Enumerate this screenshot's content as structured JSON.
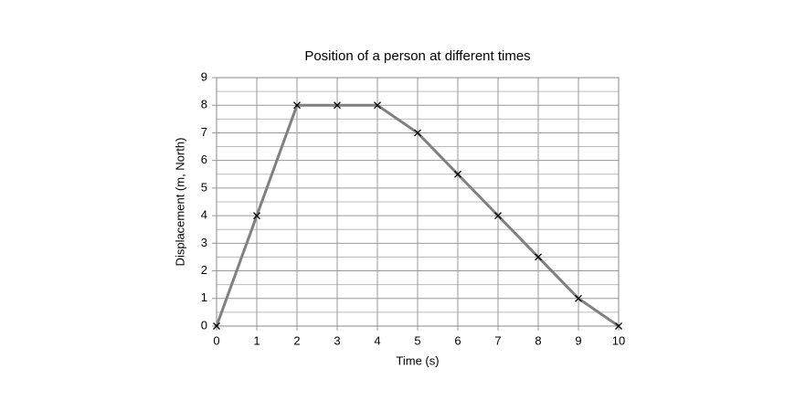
{
  "chart_data": {
    "type": "line",
    "title": "Position of a person at different times",
    "x_label": "Time (s)",
    "y_label": "Displacement (m, North)",
    "x": [
      0,
      1,
      2,
      3,
      4,
      5,
      6,
      7,
      8,
      9,
      10
    ],
    "series": [
      {
        "name": "Displacement",
        "color": "#808080",
        "values": [
          0,
          4,
          8,
          8,
          8,
          7,
          5.5,
          4,
          2.5,
          1,
          0
        ]
      }
    ],
    "xlim": [
      0,
      10
    ],
    "xticks": [
      0,
      1,
      2,
      3,
      4,
      5,
      6,
      7,
      8,
      9,
      10
    ],
    "ylim": [
      0,
      9
    ],
    "yticks": [
      0,
      1,
      2,
      3,
      4,
      5,
      6,
      7,
      8,
      9
    ],
    "grid": true,
    "marker": "x",
    "marker_color": "#000000"
  }
}
